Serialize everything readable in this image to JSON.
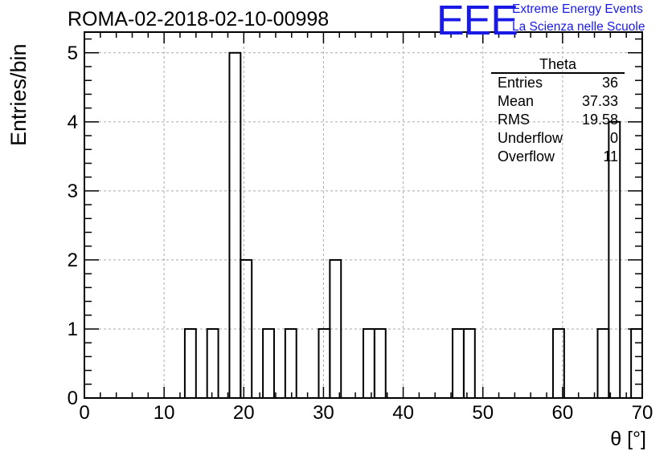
{
  "header": {
    "run_title": "ROMA-02-2018-02-10-00998"
  },
  "logo": {
    "mark": "EEE",
    "line1": "Extreme Energy Events",
    "line2": "La Scienza nelle Scuole"
  },
  "stats_box": {
    "name": "Theta",
    "rows": [
      {
        "label": "Entries",
        "value": "36"
      },
      {
        "label": "Mean",
        "value": "37.33"
      },
      {
        "label": "RMS",
        "value": "19.58"
      },
      {
        "label": "Underflow",
        "value": "0"
      },
      {
        "label": "Overflow",
        "value": "11"
      }
    ]
  },
  "chart_data": {
    "type": "bar",
    "title": "ROMA-02-2018-02-10-00998",
    "xlabel": "θ [°]",
    "ylabel": "Entries/bin",
    "xlim": [
      0,
      70
    ],
    "ylim": [
      0,
      5.3
    ],
    "bin_width": 1.4,
    "x_ticks": [
      0,
      10,
      20,
      30,
      40,
      50,
      60,
      70
    ],
    "y_ticks": [
      0,
      1,
      2,
      3,
      4,
      5
    ],
    "grid": true,
    "bins": [
      {
        "x_low": 12.6,
        "value": 1
      },
      {
        "x_low": 15.4,
        "value": 1
      },
      {
        "x_low": 18.2,
        "value": 5
      },
      {
        "x_low": 19.6,
        "value": 2
      },
      {
        "x_low": 22.4,
        "value": 1
      },
      {
        "x_low": 25.2,
        "value": 1
      },
      {
        "x_low": 29.4,
        "value": 1
      },
      {
        "x_low": 30.8,
        "value": 2
      },
      {
        "x_low": 35.0,
        "value": 1
      },
      {
        "x_low": 36.4,
        "value": 1
      },
      {
        "x_low": 46.2,
        "value": 1
      },
      {
        "x_low": 47.6,
        "value": 1
      },
      {
        "x_low": 58.8,
        "value": 1
      },
      {
        "x_low": 64.4,
        "value": 1
      },
      {
        "x_low": 65.8,
        "value": 4
      },
      {
        "x_low": 68.6,
        "value": 1
      }
    ]
  }
}
